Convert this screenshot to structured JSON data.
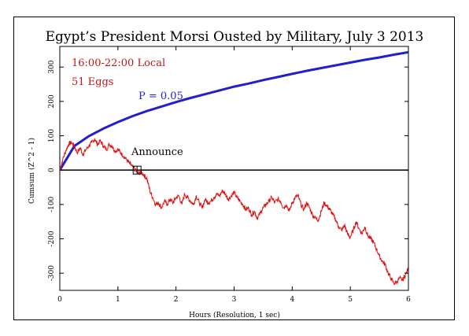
{
  "chart_data": {
    "type": "line",
    "title": "Egypt’s President Morsi Ousted by Military, July 3 2013",
    "xlabel": "Hours (Resolution, 1 sec)",
    "ylabel": "Cumsum (Z^2 - 1)",
    "xlim": [
      0,
      6
    ],
    "ylim": [
      -350,
      360
    ],
    "x_ticks": [
      0,
      1,
      2,
      3,
      4,
      5,
      6
    ],
    "y_ticks": [
      -300,
      -200,
      -100,
      0,
      100,
      200,
      300
    ],
    "x_tick_labels": [
      "0",
      "1",
      "2",
      "3",
      "4",
      "5",
      "6"
    ],
    "y_tick_labels": [
      "-300",
      "-200",
      "-100",
      "0",
      "100",
      "200",
      "300"
    ],
    "grid": false,
    "annotations": {
      "time_range": "16:00-22:00 Local",
      "eggs": "51 Eggs",
      "probability_label": "P = 0.05",
      "event_label": "Announce",
      "event_x": 1.33
    },
    "colors": {
      "cumsum": "#e01010",
      "probability": "#2020d0",
      "zero_line": "#000000",
      "labels": "#c01818"
    },
    "series": [
      {
        "key": "cumsum",
        "x": [
          0,
          0.05,
          0.1,
          0.15,
          0.2,
          0.25,
          0.3,
          0.35,
          0.4,
          0.45,
          0.5,
          0.55,
          0.6,
          0.65,
          0.7,
          0.75,
          0.8,
          0.85,
          0.9,
          0.95,
          1.0,
          1.05,
          1.1,
          1.15,
          1.2,
          1.25,
          1.3,
          1.35,
          1.4,
          1.45,
          1.5,
          1.55,
          1.6,
          1.65,
          1.7,
          1.75,
          1.8,
          1.85,
          1.9,
          1.95,
          2.0,
          2.05,
          2.1,
          2.15,
          2.2,
          2.25,
          2.3,
          2.35,
          2.4,
          2.45,
          2.5,
          2.55,
          2.6,
          2.65,
          2.7,
          2.75,
          2.8,
          2.85,
          2.9,
          2.95,
          3.0,
          3.05,
          3.1,
          3.15,
          3.2,
          3.25,
          3.3,
          3.35,
          3.4,
          3.45,
          3.5,
          3.55,
          3.6,
          3.65,
          3.7,
          3.75,
          3.8,
          3.85,
          3.9,
          3.95,
          4.0,
          4.05,
          4.1,
          4.15,
          4.2,
          4.25,
          4.3,
          4.35,
          4.4,
          4.45,
          4.5,
          4.55,
          4.6,
          4.65,
          4.7,
          4.75,
          4.8,
          4.85,
          4.9,
          4.95,
          5.0,
          5.05,
          5.1,
          5.15,
          5.2,
          5.25,
          5.3,
          5.35,
          5.4,
          5.45,
          5.5,
          5.55,
          5.6,
          5.65,
          5.7,
          5.75,
          5.8,
          5.85,
          5.9,
          5.95,
          6.0
        ],
        "values": [
          0,
          30,
          55,
          75,
          80,
          70,
          50,
          65,
          45,
          60,
          70,
          80,
          90,
          75,
          85,
          70,
          60,
          75,
          70,
          55,
          60,
          50,
          40,
          30,
          20,
          10,
          0,
          -10,
          -5,
          -15,
          -25,
          -60,
          -80,
          -100,
          -95,
          -110,
          -90,
          -100,
          -85,
          -95,
          -80,
          -75,
          -100,
          -70,
          -80,
          -90,
          -100,
          -75,
          -95,
          -110,
          -85,
          -95,
          -90,
          -80,
          -70,
          -75,
          -60,
          -70,
          -85,
          -75,
          -65,
          -80,
          -90,
          -100,
          -115,
          -110,
          -130,
          -120,
          -140,
          -125,
          -110,
          -100,
          -90,
          -80,
          -95,
          -85,
          -90,
          -110,
          -100,
          -120,
          -95,
          -80,
          -75,
          -100,
          -115,
          -95,
          -110,
          -130,
          -140,
          -145,
          -120,
          -95,
          -105,
          -115,
          -130,
          -145,
          -165,
          -175,
          -160,
          -185,
          -195,
          -175,
          -150,
          -170,
          -185,
          -165,
          -190,
          -200,
          -210,
          -230,
          -250,
          -265,
          -275,
          -300,
          -315,
          -330,
          -325,
          -315,
          -320,
          -305,
          -285
        ]
      },
      {
        "key": "probability",
        "name": "P = 0.05",
        "x": [
          0,
          0.25,
          0.5,
          0.75,
          1.0,
          1.25,
          1.5,
          1.75,
          2.0,
          2.25,
          2.5,
          2.75,
          3.0,
          3.25,
          3.5,
          3.75,
          4.0,
          4.25,
          4.5,
          4.75,
          5.0,
          5.25,
          5.5,
          5.75,
          6.0
        ],
        "values": [
          0,
          70,
          99,
          121,
          140,
          157,
          172,
          185,
          198,
          210,
          221,
          232,
          243,
          252,
          262,
          271,
          280,
          289,
          297,
          305,
          313,
          321,
          328,
          336,
          343
        ]
      }
    ]
  }
}
